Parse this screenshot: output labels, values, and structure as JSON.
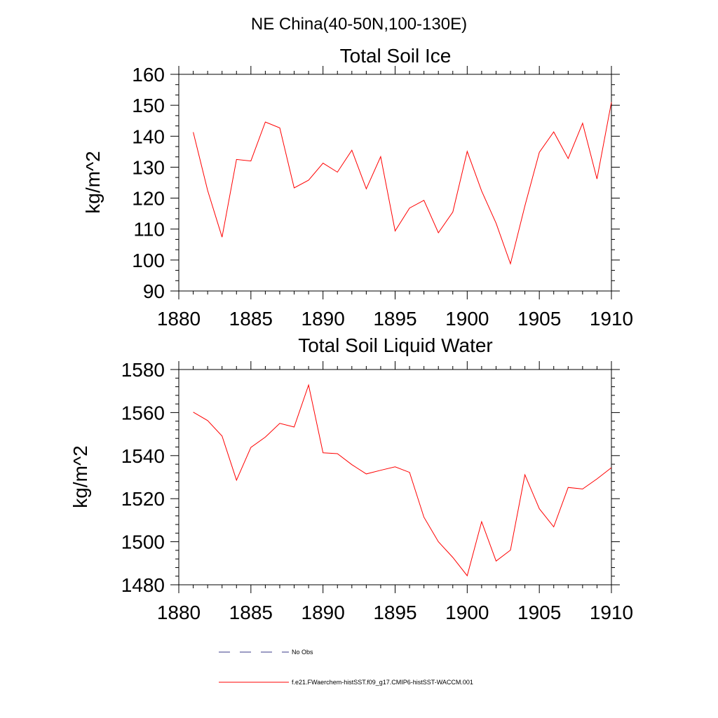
{
  "header": {
    "title": "NE China(40-50N,100-130E)"
  },
  "chart_data": [
    {
      "type": "line",
      "title": "Total Soil Ice",
      "ylabel": "kg/m^2",
      "xlabel": "",
      "xlim": [
        1880,
        1910
      ],
      "ylim": [
        90,
        160
      ],
      "x_ticks": [
        "1880",
        "1885",
        "1890",
        "1895",
        "1900",
        "1905",
        "1910"
      ],
      "y_ticks": [
        "90",
        "100",
        "110",
        "120",
        "130",
        "140",
        "150",
        "160"
      ],
      "grid": false,
      "series": [
        {
          "name": "f.e21.FWaerchem-histSST.f09_g17.CMIP6-histSST-WACCM.001",
          "color": "#ff0000",
          "x": [
            1881,
            1882,
            1883,
            1884,
            1885,
            1886,
            1887,
            1888,
            1889,
            1890,
            1891,
            1892,
            1893,
            1894,
            1895,
            1896,
            1897,
            1898,
            1899,
            1900,
            1901,
            1902,
            1903,
            1904,
            1905,
            1906,
            1907,
            1908,
            1909,
            1910
          ],
          "values": [
            141.3,
            122.5,
            107.4,
            132.5,
            132.0,
            144.6,
            142.7,
            123.3,
            125.8,
            131.3,
            128.4,
            135.5,
            123.0,
            133.4,
            109.4,
            116.8,
            119.3,
            108.8,
            115.5,
            135.1,
            122.3,
            111.9,
            98.8,
            117.5,
            134.8,
            141.4,
            132.8,
            144.2,
            126.2,
            151.0
          ]
        }
      ]
    },
    {
      "type": "line",
      "title": "Total Soil Liquid Water",
      "ylabel": "kg/m^2",
      "xlabel": "",
      "xlim": [
        1880,
        1910
      ],
      "ylim": [
        1480,
        1580
      ],
      "x_ticks": [
        "1880",
        "1885",
        "1890",
        "1895",
        "1900",
        "1905",
        "1910"
      ],
      "y_ticks": [
        "1480",
        "1500",
        "1520",
        "1540",
        "1560",
        "1580"
      ],
      "grid": false,
      "series": [
        {
          "name": "f.e21.FWaerchem-histSST.f09_g17.CMIP6-histSST-WACCM.001",
          "color": "#ff0000",
          "x": [
            1881,
            1882,
            1883,
            1884,
            1885,
            1886,
            1887,
            1888,
            1889,
            1890,
            1891,
            1892,
            1893,
            1894,
            1895,
            1896,
            1897,
            1898,
            1899,
            1900,
            1901,
            1902,
            1903,
            1904,
            1905,
            1906,
            1907,
            1908,
            1909,
            1910
          ],
          "values": [
            1560.2,
            1556.3,
            1549.1,
            1528.6,
            1543.8,
            1548.6,
            1555.0,
            1553.3,
            1572.8,
            1541.3,
            1540.9,
            1535.8,
            1531.5,
            1533.2,
            1534.8,
            1532.2,
            1511.4,
            1500.0,
            1492.7,
            1484.2,
            1509.3,
            1491.0,
            1496.1,
            1531.1,
            1515.3,
            1506.9,
            1525.2,
            1524.5,
            1529.2,
            1534.4
          ]
        }
      ]
    }
  ],
  "legend": {
    "placement": "bottom",
    "items": [
      {
        "label": "No Obs",
        "color": "#3a3a8a",
        "style": "dashed"
      },
      {
        "label": "f.e21.FWaerchem-histSST.f09_g17.CMIP6-histSST-WACCM.001",
        "color": "#ff0000",
        "style": "solid"
      }
    ]
  }
}
